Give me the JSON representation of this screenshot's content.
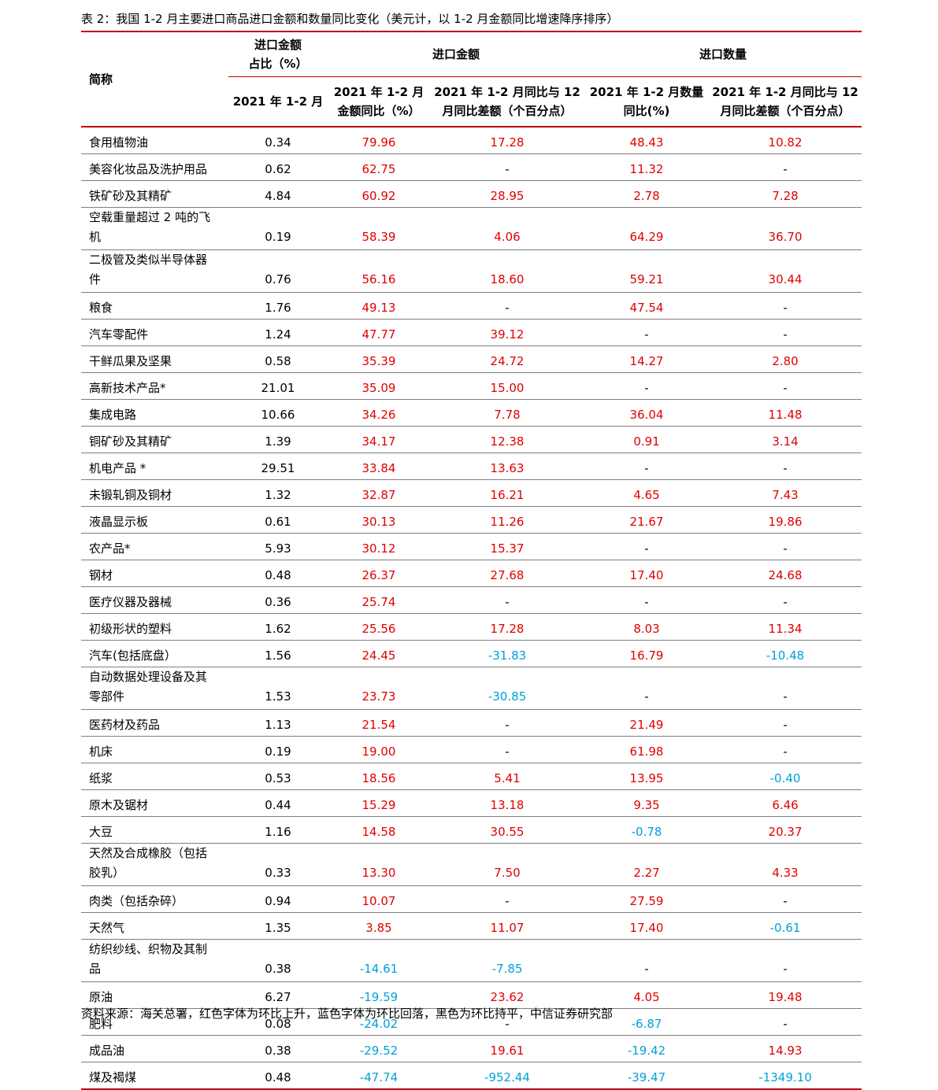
{
  "title": "表 2：我国 1-2 月主要进口商品进口金额和数量同比变化（美元计，以 1-2 月金额同比增速降序排序）",
  "headers": {
    "name": "简称",
    "share_top": "进口金额\n占比（%）",
    "share_sub": "2021 年 1-2 月",
    "amount_group": "进口金额",
    "quantity_group": "进口数量",
    "amount_yoy": "2021 年 1-2 月\n金额同比（%）",
    "amount_diff": "2021 年 1-2 月同比与 12\n月同比差额（个百分点）",
    "qty_yoy": "2021 年 1-2 月数量\n同比(%)",
    "qty_diff": "2021 年 1-2 月同比与 12\n月同比差额（个百分点）"
  },
  "rows": [
    {
      "name": "食用植物油",
      "share": "0.34",
      "amt_yoy": "79.96",
      "amt_diff": "17.28",
      "qty_yoy": "48.43",
      "qty_diff": "10.82"
    },
    {
      "name": "美容化妆品及洗护用品",
      "share": "0.62",
      "amt_yoy": "62.75",
      "amt_diff": "-",
      "qty_yoy": "11.32",
      "qty_diff": "-"
    },
    {
      "name": "铁矿砂及其精矿",
      "share": "4.84",
      "amt_yoy": "60.92",
      "amt_diff": "28.95",
      "qty_yoy": "2.78",
      "qty_diff": "7.28"
    },
    {
      "name": "空载重量超过 2 吨的飞\n机",
      "share": "0.19",
      "amt_yoy": "58.39",
      "amt_diff": "4.06",
      "qty_yoy": "64.29",
      "qty_diff": "36.70"
    },
    {
      "name": "二极管及类似半导体器\n件",
      "share": "0.76",
      "amt_yoy": "56.16",
      "amt_diff": "18.60",
      "qty_yoy": "59.21",
      "qty_diff": "30.44"
    },
    {
      "name": "粮食",
      "share": "1.76",
      "amt_yoy": "49.13",
      "amt_diff": "-",
      "qty_yoy": "47.54",
      "qty_diff": "-"
    },
    {
      "name": "汽车零配件",
      "share": "1.24",
      "amt_yoy": "47.77",
      "amt_diff": "39.12",
      "qty_yoy": "-",
      "qty_diff": "-"
    },
    {
      "name": "干鲜瓜果及坚果",
      "share": "0.58",
      "amt_yoy": "35.39",
      "amt_diff": "24.72",
      "qty_yoy": "14.27",
      "qty_diff": "2.80"
    },
    {
      "name": "高新技术产品*",
      "share": "21.01",
      "amt_yoy": "35.09",
      "amt_diff": "15.00",
      "qty_yoy": "-",
      "qty_diff": "-"
    },
    {
      "name": "集成电路",
      "share": "10.66",
      "amt_yoy": "34.26",
      "amt_diff": "7.78",
      "qty_yoy": "36.04",
      "qty_diff": "11.48"
    },
    {
      "name": "铜矿砂及其精矿",
      "share": "1.39",
      "amt_yoy": "34.17",
      "amt_diff": "12.38",
      "qty_yoy": "0.91",
      "qty_diff": "3.14"
    },
    {
      "name": "机电产品 *",
      "share": "29.51",
      "amt_yoy": "33.84",
      "amt_diff": "13.63",
      "qty_yoy": "-",
      "qty_diff": "-"
    },
    {
      "name": "未锻轧铜及铜材",
      "share": "1.32",
      "amt_yoy": "32.87",
      "amt_diff": "16.21",
      "qty_yoy": "4.65",
      "qty_diff": "7.43"
    },
    {
      "name": "液晶显示板",
      "share": "0.61",
      "amt_yoy": "30.13",
      "amt_diff": "11.26",
      "qty_yoy": "21.67",
      "qty_diff": "19.86"
    },
    {
      "name": "农产品*",
      "share": "5.93",
      "amt_yoy": "30.12",
      "amt_diff": "15.37",
      "qty_yoy": "-",
      "qty_diff": "-"
    },
    {
      "name": "钢材",
      "share": "0.48",
      "amt_yoy": "26.37",
      "amt_diff": "27.68",
      "qty_yoy": "17.40",
      "qty_diff": "24.68"
    },
    {
      "name": "医疗仪器及器械",
      "share": "0.36",
      "amt_yoy": "25.74",
      "amt_diff": "-",
      "qty_yoy": "-",
      "qty_diff": "-"
    },
    {
      "name": "初级形状的塑料",
      "share": "1.62",
      "amt_yoy": "25.56",
      "amt_diff": "17.28",
      "qty_yoy": "8.03",
      "qty_diff": "11.34"
    },
    {
      "name": "汽车(包括底盘）",
      "share": "1.56",
      "amt_yoy": "24.45",
      "amt_diff": "-31.83",
      "qty_yoy": "16.79",
      "qty_diff": "-10.48"
    },
    {
      "name": "自动数据处理设备及其\n零部件",
      "share": "1.53",
      "amt_yoy": "23.73",
      "amt_diff": "-30.85",
      "qty_yoy": "-",
      "qty_diff": "-"
    },
    {
      "name": "医药材及药品",
      "share": "1.13",
      "amt_yoy": "21.54",
      "amt_diff": "-",
      "qty_yoy": "21.49",
      "qty_diff": "-"
    },
    {
      "name": "机床",
      "share": "0.19",
      "amt_yoy": "19.00",
      "amt_diff": "-",
      "qty_yoy": "61.98",
      "qty_diff": "-"
    },
    {
      "name": "纸浆",
      "share": "0.53",
      "amt_yoy": "18.56",
      "amt_diff": "5.41",
      "qty_yoy": "13.95",
      "qty_diff": "-0.40"
    },
    {
      "name": "原木及锯材",
      "share": "0.44",
      "amt_yoy": "15.29",
      "amt_diff": "13.18",
      "qty_yoy": "9.35",
      "qty_diff": "6.46"
    },
    {
      "name": "大豆",
      "share": "1.16",
      "amt_yoy": "14.58",
      "amt_diff": "30.55",
      "qty_yoy": "-0.78",
      "qty_diff": "20.37"
    },
    {
      "name": "天然及合成橡胶（包括\n胶乳）",
      "share": "0.33",
      "amt_yoy": "13.30",
      "amt_diff": "7.50",
      "qty_yoy": "2.27",
      "qty_diff": "4.33"
    },
    {
      "name": "肉类（包括杂碎）",
      "share": "0.94",
      "amt_yoy": "10.07",
      "amt_diff": "-",
      "qty_yoy": "27.59",
      "qty_diff": "-"
    },
    {
      "name": "天然气",
      "share": "1.35",
      "amt_yoy": "3.85",
      "amt_diff": "11.07",
      "qty_yoy": "17.40",
      "qty_diff": "-0.61"
    },
    {
      "name": "纺织纱线、织物及其制\n品",
      "share": "0.38",
      "amt_yoy": "-14.61",
      "amt_diff": "-7.85",
      "qty_yoy": "-",
      "qty_diff": "-"
    },
    {
      "name": "原油",
      "share": "6.27",
      "amt_yoy": "-19.59",
      "amt_diff": "23.62",
      "qty_yoy": "4.05",
      "qty_diff": "19.48"
    },
    {
      "name": "肥料",
      "share": "0.08",
      "amt_yoy": "-24.02",
      "amt_diff": "-",
      "qty_yoy": "-6.87",
      "qty_diff": "-"
    },
    {
      "name": "成品油",
      "share": "0.38",
      "amt_yoy": "-29.52",
      "amt_diff": "19.61",
      "qty_yoy": "-19.42",
      "qty_diff": "14.93"
    },
    {
      "name": "煤及褐煤",
      "share": "0.48",
      "amt_yoy": "-47.74",
      "amt_diff": "-952.44",
      "qty_yoy": "-39.47",
      "qty_diff": "-1349.10"
    }
  ],
  "colors": {
    "up": "#e00000",
    "down": "#00a0d8",
    "flat": "#000000",
    "rule": "#c00000"
  },
  "note": "资料来源：海关总署，红色字体为环比上升，蓝色字体为环比回落，黑色为环比持平，中信证券研究部"
}
